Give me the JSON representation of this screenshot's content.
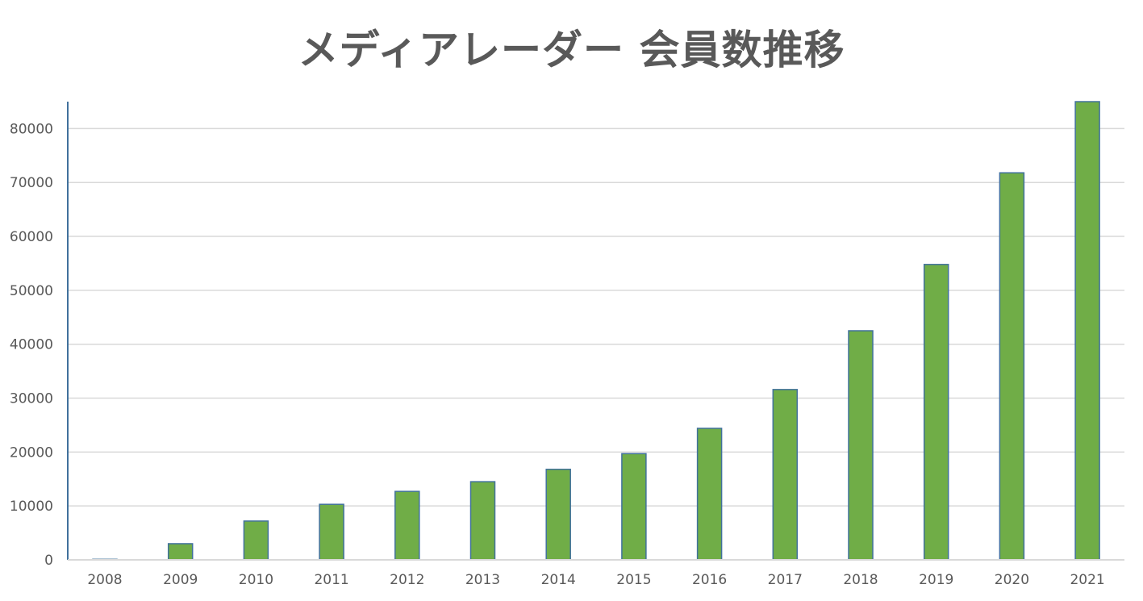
{
  "chart_data": {
    "type": "bar",
    "title": "メディアレーダー 会員数推移",
    "xlabel": "",
    "ylabel": "",
    "categories": [
      "2008",
      "2009",
      "2010",
      "2011",
      "2012",
      "2013",
      "2014",
      "2015",
      "2016",
      "2017",
      "2018",
      "2019",
      "2020",
      "2021"
    ],
    "values": [
      100,
      3000,
      7200,
      10300,
      12700,
      14500,
      16800,
      19700,
      24400,
      31600,
      42500,
      54800,
      71800,
      85000
    ],
    "ylim": [
      0,
      85000
    ],
    "yticks": [
      0,
      10000,
      20000,
      30000,
      40000,
      50000,
      60000,
      70000,
      80000
    ],
    "ytick_labels": [
      "0",
      "10000",
      "20000",
      "30000",
      "40000",
      "50000",
      "60000",
      "70000",
      "80000"
    ],
    "grid": true,
    "legend": "none",
    "colors": {
      "bar_fill": "#70AD47",
      "bar_stroke": "#41719C",
      "gridline": "#D9D9D9",
      "axis": "#41719C",
      "title": "#595959",
      "tick_text": "#595959"
    }
  }
}
